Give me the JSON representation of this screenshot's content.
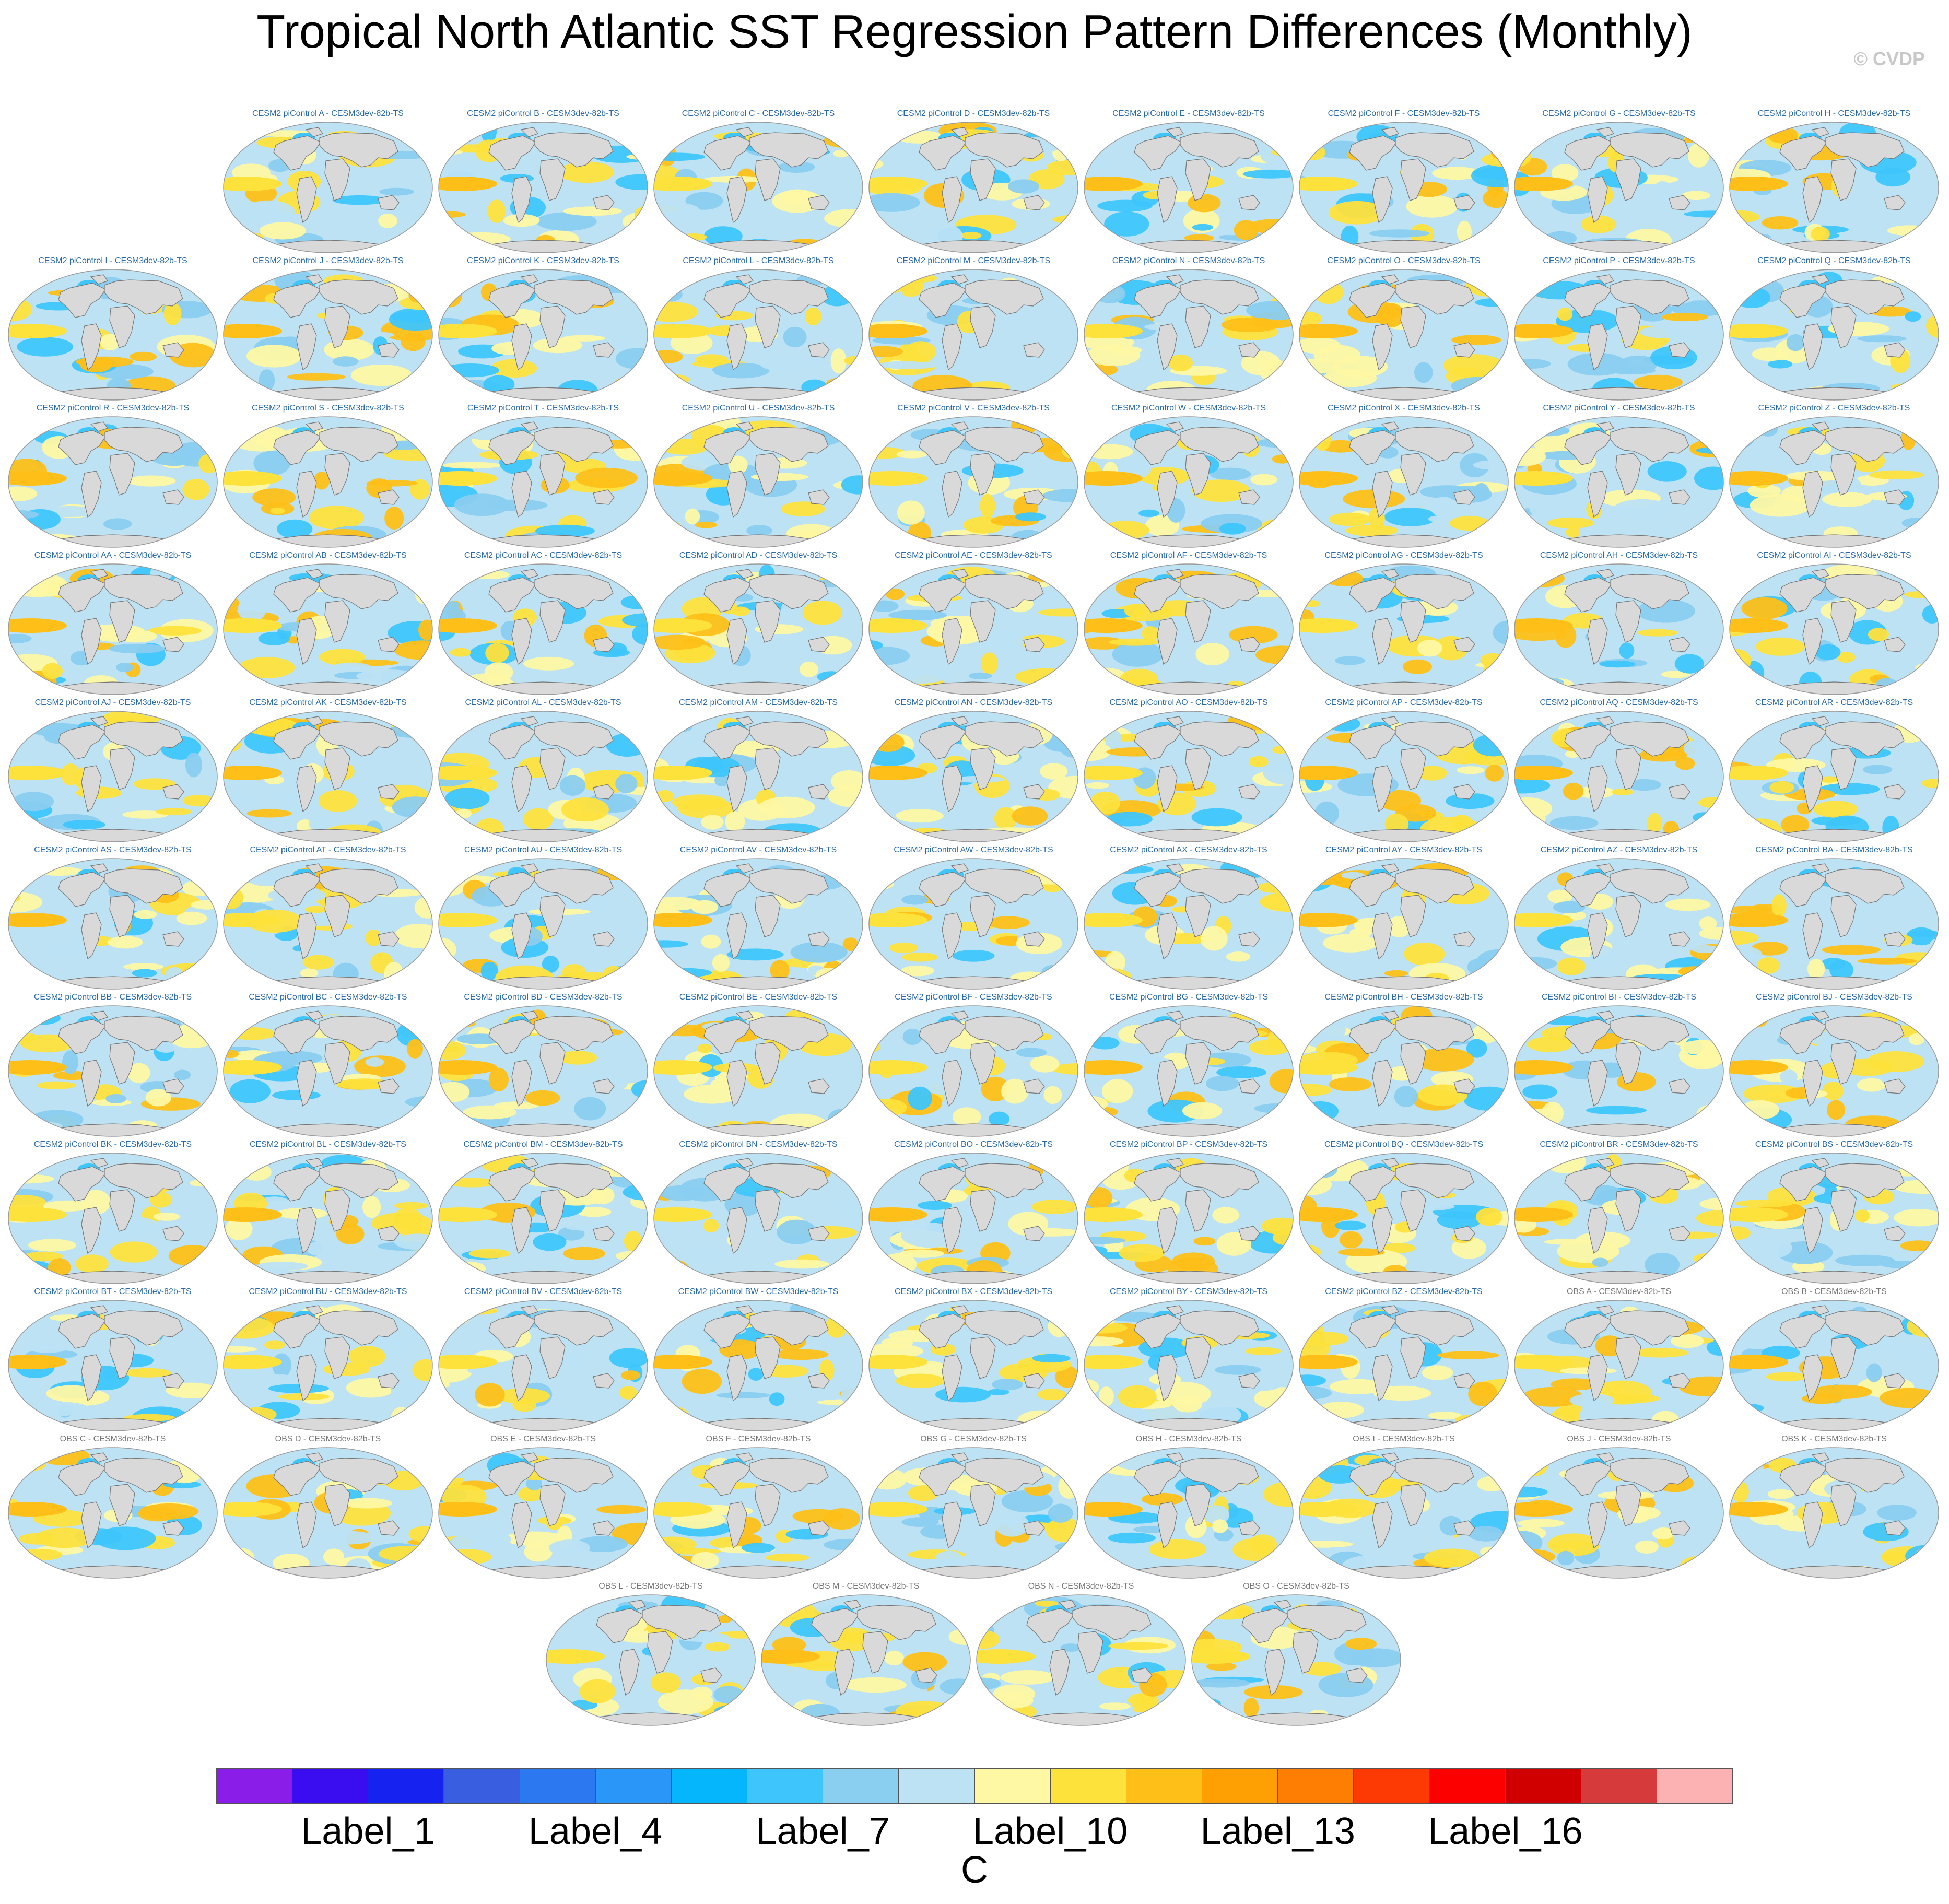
{
  "title": "Tropical North Atlantic SST Regression Pattern Differences (Monthly)",
  "watermark": "© CVDP",
  "panel_suffix": " - CESM3dev-82b-TS",
  "model_prefix": "CESM2 piControl ",
  "obs_prefix": "OBS ",
  "panels": [
    {
      "group": "model",
      "id": "A"
    },
    {
      "group": "model",
      "id": "B"
    },
    {
      "group": "model",
      "id": "C"
    },
    {
      "group": "model",
      "id": "D"
    },
    {
      "group": "model",
      "id": "E"
    },
    {
      "group": "model",
      "id": "F"
    },
    {
      "group": "model",
      "id": "G"
    },
    {
      "group": "model",
      "id": "H"
    },
    {
      "group": "model",
      "id": "I"
    },
    {
      "group": "model",
      "id": "J"
    },
    {
      "group": "model",
      "id": "K"
    },
    {
      "group": "model",
      "id": "L"
    },
    {
      "group": "model",
      "id": "M"
    },
    {
      "group": "model",
      "id": "N"
    },
    {
      "group": "model",
      "id": "O"
    },
    {
      "group": "model",
      "id": "P"
    },
    {
      "group": "model",
      "id": "Q"
    },
    {
      "group": "model",
      "id": "R"
    },
    {
      "group": "model",
      "id": "S"
    },
    {
      "group": "model",
      "id": "T"
    },
    {
      "group": "model",
      "id": "U"
    },
    {
      "group": "model",
      "id": "V"
    },
    {
      "group": "model",
      "id": "W"
    },
    {
      "group": "model",
      "id": "X"
    },
    {
      "group": "model",
      "id": "Y"
    },
    {
      "group": "model",
      "id": "Z"
    },
    {
      "group": "model",
      "id": "AA"
    },
    {
      "group": "model",
      "id": "AB"
    },
    {
      "group": "model",
      "id": "AC"
    },
    {
      "group": "model",
      "id": "AD"
    },
    {
      "group": "model",
      "id": "AE"
    },
    {
      "group": "model",
      "id": "AF"
    },
    {
      "group": "model",
      "id": "AG"
    },
    {
      "group": "model",
      "id": "AH"
    },
    {
      "group": "model",
      "id": "AI"
    },
    {
      "group": "model",
      "id": "AJ"
    },
    {
      "group": "model",
      "id": "AK"
    },
    {
      "group": "model",
      "id": "AL"
    },
    {
      "group": "model",
      "id": "AM"
    },
    {
      "group": "model",
      "id": "AN"
    },
    {
      "group": "model",
      "id": "AO"
    },
    {
      "group": "model",
      "id": "AP"
    },
    {
      "group": "model",
      "id": "AQ"
    },
    {
      "group": "model",
      "id": "AR"
    },
    {
      "group": "model",
      "id": "AS"
    },
    {
      "group": "model",
      "id": "AT"
    },
    {
      "group": "model",
      "id": "AU"
    },
    {
      "group": "model",
      "id": "AV"
    },
    {
      "group": "model",
      "id": "AW"
    },
    {
      "group": "model",
      "id": "AX"
    },
    {
      "group": "model",
      "id": "AY"
    },
    {
      "group": "model",
      "id": "AZ"
    },
    {
      "group": "model",
      "id": "BA"
    },
    {
      "group": "model",
      "id": "BB"
    },
    {
      "group": "model",
      "id": "BC"
    },
    {
      "group": "model",
      "id": "BD"
    },
    {
      "group": "model",
      "id": "BE"
    },
    {
      "group": "model",
      "id": "BF"
    },
    {
      "group": "model",
      "id": "BG"
    },
    {
      "group": "model",
      "id": "BH"
    },
    {
      "group": "model",
      "id": "BI"
    },
    {
      "group": "model",
      "id": "BJ"
    },
    {
      "group": "model",
      "id": "BK"
    },
    {
      "group": "model",
      "id": "BL"
    },
    {
      "group": "model",
      "id": "BM"
    },
    {
      "group": "model",
      "id": "BN"
    },
    {
      "group": "model",
      "id": "BO"
    },
    {
      "group": "model",
      "id": "BP"
    },
    {
      "group": "model",
      "id": "BQ"
    },
    {
      "group": "model",
      "id": "BR"
    },
    {
      "group": "model",
      "id": "BS"
    },
    {
      "group": "model",
      "id": "BT"
    },
    {
      "group": "model",
      "id": "BU"
    },
    {
      "group": "model",
      "id": "BV"
    },
    {
      "group": "model",
      "id": "BW"
    },
    {
      "group": "model",
      "id": "BX"
    },
    {
      "group": "model",
      "id": "BY"
    },
    {
      "group": "model",
      "id": "BZ"
    },
    {
      "group": "obs",
      "id": "A"
    },
    {
      "group": "obs",
      "id": "B"
    },
    {
      "group": "obs",
      "id": "C"
    },
    {
      "group": "obs",
      "id": "D"
    },
    {
      "group": "obs",
      "id": "E"
    },
    {
      "group": "obs",
      "id": "F"
    },
    {
      "group": "obs",
      "id": "G"
    },
    {
      "group": "obs",
      "id": "H"
    },
    {
      "group": "obs",
      "id": "I"
    },
    {
      "group": "obs",
      "id": "J"
    },
    {
      "group": "obs",
      "id": "K"
    },
    {
      "group": "obs",
      "id": "L"
    },
    {
      "group": "obs",
      "id": "M"
    },
    {
      "group": "obs",
      "id": "N"
    },
    {
      "group": "obs",
      "id": "O"
    }
  ],
  "colorbar": {
    "colors": [
      "#8a1ee8",
      "#3a0cf0",
      "#1622f0",
      "#3a5ee0",
      "#2c78f0",
      "#2a96f8",
      "#06b6fc",
      "#3ec6fc",
      "#8acef0",
      "#bce2f4",
      "#fef8a4",
      "#fee23c",
      "#fec018",
      "#fea004",
      "#fe7e04",
      "#fe3a04",
      "#fc0000",
      "#d00000",
      "#d63a3a",
      "#fcb2b2"
    ],
    "tick_labels": [
      "Label_1",
      "Label_4",
      "Label_7",
      "Label_10",
      "Label_13",
      "Label_16"
    ],
    "tick_boundaries": [
      2,
      5,
      8,
      11,
      14,
      17
    ],
    "units": "C"
  }
}
